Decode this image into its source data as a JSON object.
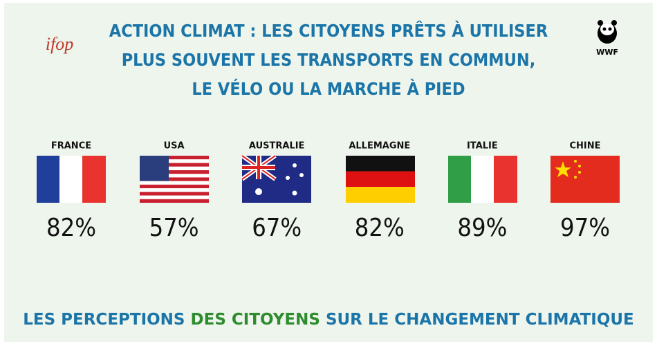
{
  "header": {
    "title_lines": [
      "ACTION CLIMAT : LES CITOYENS PRÊTS À  UTILISER",
      "PLUS SOUVENT LES TRANSPORTS EN COMMUN,",
      "LE VÉLO OU LA MARCHE À PIED"
    ],
    "left_logo": "ifop",
    "right_logo": "WWF"
  },
  "countries": [
    {
      "name": "FRANCE",
      "value": "82%"
    },
    {
      "name": "USA",
      "value": "57%"
    },
    {
      "name": "AUSTRALIE",
      "value": "67%"
    },
    {
      "name": "ALLEMAGNE",
      "value": "82%"
    },
    {
      "name": "ITALIE",
      "value": "89%"
    },
    {
      "name": "CHINE",
      "value": "97%"
    }
  ],
  "footer": {
    "parts": [
      "LES PERCEPTIONS ",
      "DES CITOYENS",
      " SUR LE CHANGEMENT CLIMATIQUE"
    ]
  }
}
